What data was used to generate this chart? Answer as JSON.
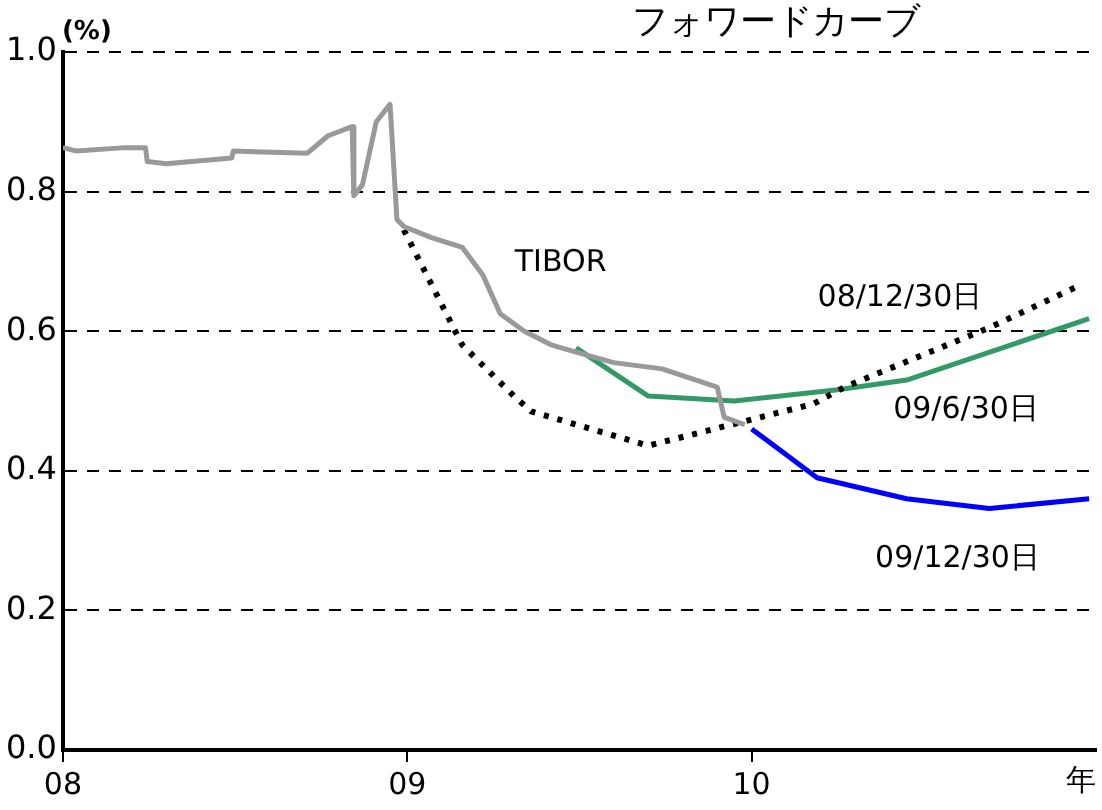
{
  "chart_data": {
    "type": "line",
    "title": "フォワードカーブ",
    "ylabel": "(%)",
    "xlabel": "年",
    "xlim": [
      8,
      11
    ],
    "xticks": [
      {
        "value": 8,
        "label": "08"
      },
      {
        "value": 9,
        "label": "09"
      },
      {
        "value": 10,
        "label": "10"
      }
    ],
    "ylim": [
      0,
      1
    ],
    "yticks": [
      {
        "value": 0,
        "label": "0.0"
      },
      {
        "value": 0.2,
        "label": "0.2"
      },
      {
        "value": 0.4,
        "label": "0.4"
      },
      {
        "value": 0.6,
        "label": "0.6"
      },
      {
        "value": 0.8,
        "label": "0.8"
      },
      {
        "value": 1,
        "label": "1.0"
      }
    ],
    "grid": "y",
    "legend": false,
    "marker": "none",
    "series": [
      {
        "name": "TIBOR",
        "color": "#999999",
        "x": [
          8.0,
          8.04,
          8.18,
          8.24,
          8.245,
          8.3,
          8.49,
          8.495,
          8.71,
          8.77,
          8.84,
          8.845,
          8.87,
          8.91,
          8.95,
          8.97,
          8.99,
          9.07,
          9.16,
          9.22,
          9.27,
          9.34,
          9.42,
          9.49,
          9.6,
          9.74,
          9.9,
          9.92,
          9.98
        ],
        "values": [
          0.863,
          0.858,
          0.863,
          0.863,
          0.843,
          0.84,
          0.848,
          0.858,
          0.855,
          0.88,
          0.893,
          0.794,
          0.81,
          0.9,
          0.925,
          0.76,
          0.75,
          0.734,
          0.72,
          0.68,
          0.625,
          0.6,
          0.58,
          0.57,
          0.555,
          0.546,
          0.52,
          0.477,
          0.466
        ]
      },
      {
        "name": "08/12/30日",
        "color": "#000000",
        "line_style": "dotted",
        "x": [
          8.99,
          9.16,
          9.31,
          9.36,
          9.7,
          10.18,
          10.27,
          10.69,
          10.95
        ],
        "values": [
          0.745,
          0.58,
          0.507,
          0.485,
          0.436,
          0.496,
          0.52,
          0.605,
          0.665
        ]
      },
      {
        "name": "09/6/30日",
        "color": "#339966",
        "x": [
          9.49,
          9.7,
          9.95,
          10.25,
          10.45,
          10.98
        ],
        "values": [
          0.576,
          0.507,
          0.5,
          0.516,
          0.53,
          0.618
        ]
      },
      {
        "name": "09/12/30日",
        "color": "#0000ff",
        "x": [
          10.0,
          10.19,
          10.45,
          10.69,
          10.98
        ],
        "values": [
          0.46,
          0.39,
          0.36,
          0.346,
          0.36
        ]
      }
    ]
  }
}
